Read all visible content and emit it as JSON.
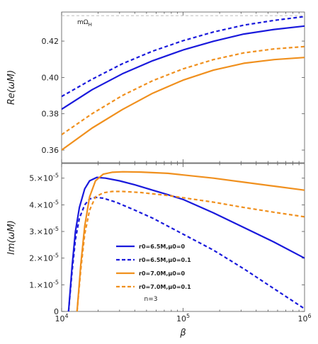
{
  "chart_data": [
    {
      "type": "line",
      "panel": "top",
      "xscale": "log",
      "xlim": [
        10000,
        1000000
      ],
      "ylim": [
        0.353,
        0.436
      ],
      "ylabel": "Re(ωM)",
      "yticks": [
        0.36,
        0.38,
        0.4,
        0.42
      ],
      "ytick_labels": [
        "0.36",
        "0.38",
        "0.40",
        "0.42"
      ],
      "reference_line": {
        "label": "mΩH",
        "label_main": "mΩ",
        "label_sub": "H",
        "value": 0.434,
        "style": "dashed",
        "color": "#bbbbbb"
      },
      "series": [
        {
          "name": "r0=6.5M,μ0=0",
          "color": "#1a1adc",
          "dash": "solid",
          "x": [
            10000,
            17800,
            31600,
            56200,
            100000,
            178000,
            316000,
            562000,
            1000000
          ],
          "y": [
            0.3825,
            0.3932,
            0.402,
            0.4092,
            0.4151,
            0.4199,
            0.4239,
            0.4264,
            0.4283
          ]
        },
        {
          "name": "r0=6.5M,μ0=0.1",
          "color": "#1a1adc",
          "dash": "dashed",
          "x": [
            10000,
            17800,
            31600,
            56200,
            100000,
            178000,
            316000,
            562000,
            1000000
          ],
          "y": [
            0.3895,
            0.399,
            0.4075,
            0.4145,
            0.4202,
            0.425,
            0.4288,
            0.4314,
            0.4335
          ]
        },
        {
          "name": "r0=7.0M,μ0=0",
          "color": "#f0901e",
          "dash": "solid",
          "x": [
            10000,
            17800,
            31600,
            56200,
            100000,
            178000,
            316000,
            562000,
            1000000
          ],
          "y": [
            0.36,
            0.3721,
            0.3823,
            0.3913,
            0.3985,
            0.404,
            0.4078,
            0.4098,
            0.411
          ]
        },
        {
          "name": "r0=7.0M,μ0=0.1",
          "color": "#f0901e",
          "dash": "dashed",
          "x": [
            10000,
            17800,
            31600,
            56200,
            100000,
            178000,
            316000,
            562000,
            1000000
          ],
          "y": [
            0.3685,
            0.38,
            0.39,
            0.3982,
            0.4047,
            0.4098,
            0.4135,
            0.4157,
            0.417
          ]
        }
      ]
    },
    {
      "type": "line",
      "panel": "bottom",
      "xscale": "log",
      "xlim": [
        10000,
        1000000
      ],
      "ylim": [
        0,
        5.55
      ],
      "ylabel": "Im(ωM)",
      "xlabel": "β",
      "xticks": [
        10000,
        100000,
        1000000
      ],
      "xtick_labels": [
        "10",
        "10",
        "10"
      ],
      "xtick_exponents": [
        "4",
        "5",
        "6"
      ],
      "yticks": [
        0,
        1,
        2,
        3,
        4,
        5
      ],
      "ytick_labels": [
        "0",
        "1.×10",
        "2.×10",
        "3.×10",
        "4.×10",
        "5.×10"
      ],
      "ytick_exponents": [
        "",
        "-5",
        "-5",
        "-5",
        "-5",
        "-5"
      ],
      "y_unit": "×10^-5",
      "annotation": "n=3",
      "legend": {
        "placement": "center",
        "entries": [
          {
            "label": "r0=6.5M,μ0=0",
            "color": "#1a1adc",
            "dash": "solid"
          },
          {
            "label": "r0=6.5M,μ0=0.1",
            "color": "#1a1adc",
            "dash": "dashed"
          },
          {
            "label": "r0=7.0M,μ0=0",
            "color": "#f0901e",
            "dash": "solid"
          },
          {
            "label": "r0=7.0M,μ0=0.1",
            "color": "#f0901e",
            "dash": "dashed"
          }
        ]
      },
      "series": [
        {
          "name": "r0=6.5M,μ0=0",
          "color": "#1a1adc",
          "dash": "solid",
          "x": [
            11400,
            12200,
            13000,
            14000,
            15500,
            17000,
            19500,
            23000,
            30000,
            40000,
            56200,
            75000,
            100000,
            178000,
            316000,
            562000,
            1000000
          ],
          "y": [
            0,
            1.7,
            3.0,
            3.9,
            4.6,
            4.9,
            5.03,
            5.0,
            4.9,
            4.75,
            4.55,
            4.38,
            4.2,
            3.7,
            3.15,
            2.6,
            2.0
          ]
        },
        {
          "name": "r0=6.5M,μ0=0.1",
          "color": "#1a1adc",
          "dash": "dashed",
          "x": [
            11400,
            12200,
            13000,
            14000,
            15500,
            17000,
            19000,
            22000,
            28000,
            40000,
            56200,
            100000,
            178000,
            316000,
            562000,
            1000000
          ],
          "y": [
            0,
            1.5,
            2.7,
            3.5,
            4.0,
            4.22,
            4.28,
            4.25,
            4.1,
            3.8,
            3.5,
            2.9,
            2.3,
            1.6,
            0.85,
            0.1
          ]
        },
        {
          "name": "r0=7.0M,μ0=0",
          "color": "#f0901e",
          "dash": "solid",
          "x": [
            13400,
            14400,
            15500,
            17000,
            19000,
            22000,
            26000,
            32000,
            45000,
            75000,
            178000,
            316000,
            562000,
            1000000
          ],
          "y": [
            0,
            1.8,
            3.2,
            4.3,
            4.9,
            5.15,
            5.22,
            5.24,
            5.23,
            5.18,
            5.0,
            4.85,
            4.7,
            4.55
          ]
        },
        {
          "name": "r0=7.0M,μ0=0.1",
          "color": "#f0901e",
          "dash": "dashed",
          "x": [
            13400,
            14400,
            15500,
            17000,
            19000,
            22000,
            26000,
            32000,
            45000,
            75000,
            178000,
            316000,
            562000,
            1000000
          ],
          "y": [
            0,
            1.6,
            2.9,
            3.8,
            4.3,
            4.45,
            4.5,
            4.5,
            4.46,
            4.35,
            4.1,
            3.9,
            3.72,
            3.55
          ]
        }
      ]
    }
  ]
}
